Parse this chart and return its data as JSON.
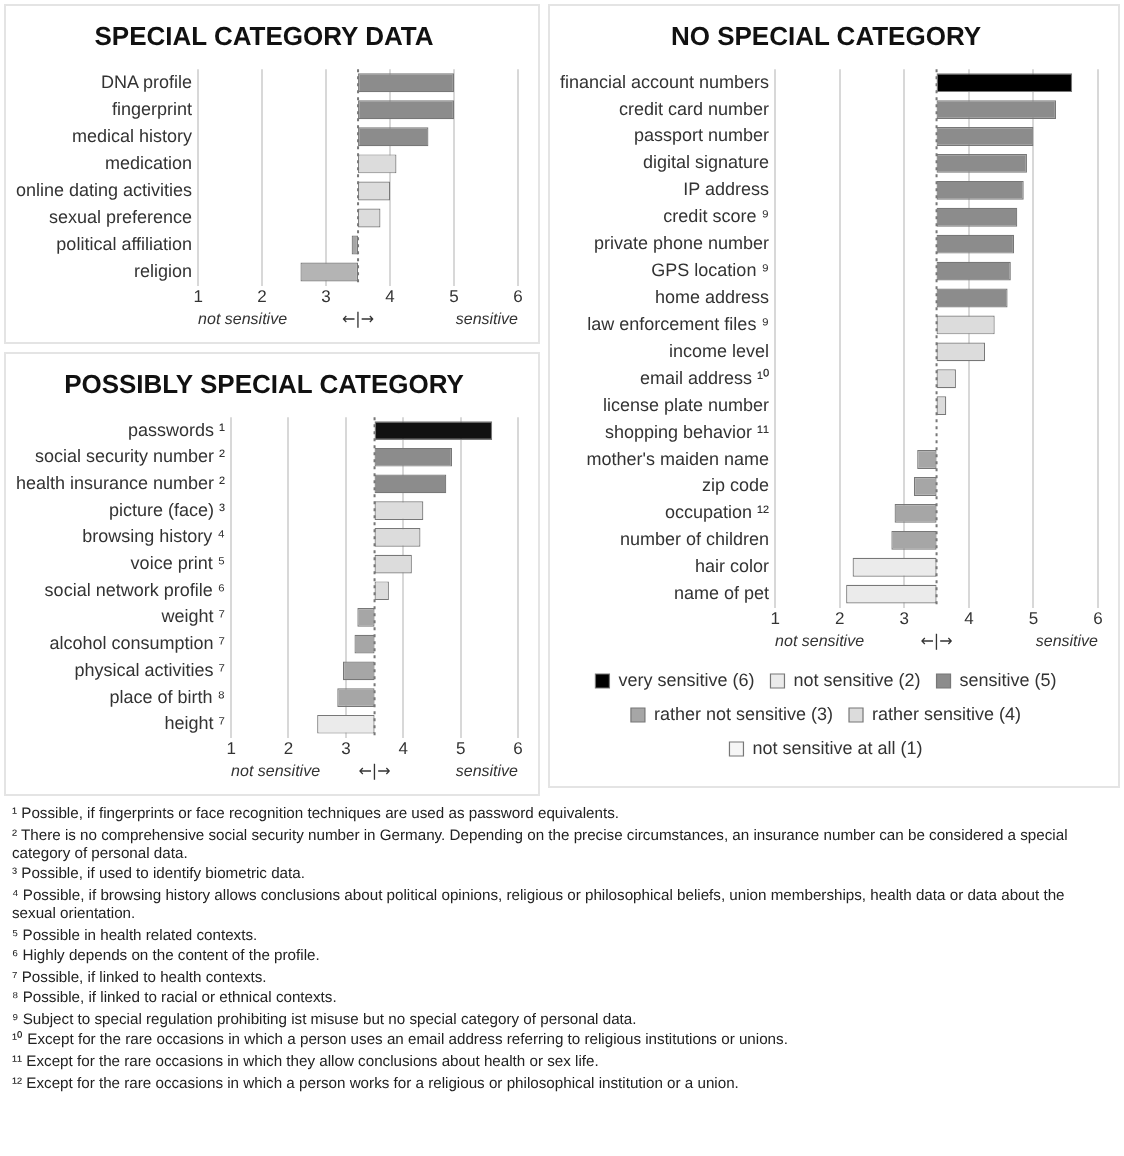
{
  "chart_data": [
    {
      "type": "bar",
      "orientation": "horizontal",
      "title": "SPECIAL CATEGORY DATA",
      "categories": [
        "DNA profile",
        "fingerprint",
        "medical history",
        "medication",
        "online dating activities",
        "sexual preference",
        "political affiliation",
        "religion"
      ],
      "base": [
        3.5,
        3.5,
        3.5,
        3.5,
        3.5,
        3.5,
        3.5,
        3.5
      ],
      "values": [
        1.5,
        1.5,
        1.1,
        0.6,
        0.5,
        0.35,
        -0.1,
        -0.9
      ],
      "colors": [
        "#8c8c8c",
        "#8c8c8c",
        "#8c8c8c",
        "#dcdcdc",
        "#dcdcdc",
        "#dcdcdc",
        "#a6a6a6",
        "#b4b4b4"
      ],
      "xlim": [
        1,
        6
      ],
      "xticks": [
        1,
        2,
        3,
        4,
        5,
        6
      ],
      "grid": "x",
      "ref_lines": [
        {
          "axis": "x",
          "value": 3.5,
          "label": "←|→",
          "line_style": "dotted"
        }
      ],
      "annotations": [
        "not sensitive",
        "sensitive"
      ]
    },
    {
      "type": "bar",
      "orientation": "horizontal",
      "title": "POSSIBLY SPECIAL CATEGORY",
      "categories": [
        "passwords ¹",
        "social security number ²",
        "health insurance number ²",
        "picture (face) ³",
        "browsing history ⁴",
        "voice print ⁵",
        "social network profile ⁶",
        "weight ⁷",
        "alcohol consumption ⁷",
        "physical activities ⁷",
        "place of birth ⁸",
        "height ⁷"
      ],
      "base": [
        3.5,
        3.5,
        3.5,
        3.5,
        3.5,
        3.5,
        3.5,
        3.5,
        3.5,
        3.5,
        3.5,
        3.5
      ],
      "values": [
        2.05,
        1.35,
        1.25,
        0.85,
        0.8,
        0.65,
        0.25,
        -0.3,
        -0.35,
        -0.55,
        -0.65,
        -1.0
      ],
      "colors": [
        "#111111",
        "#8c8c8c",
        "#8c8c8c",
        "#dcdcdc",
        "#dcdcdc",
        "#dcdcdc",
        "#dcdcdc",
        "#a6a6a6",
        "#a6a6a6",
        "#a6a6a6",
        "#a6a6a6",
        "#ebebeb"
      ],
      "xlim": [
        1,
        6
      ],
      "xticks": [
        1,
        2,
        3,
        4,
        5,
        6
      ],
      "grid": "x",
      "ref_lines": [
        {
          "axis": "x",
          "value": 3.5,
          "label": "←|→",
          "line_style": "dotted"
        }
      ],
      "annotations": [
        "not sensitive",
        "sensitive"
      ]
    },
    {
      "type": "bar",
      "orientation": "horizontal",
      "title": "NO SPECIAL CATEGORY",
      "categories": [
        "financial account numbers",
        "credit card number",
        "passport number",
        "digital signature",
        "IP address",
        "credit score ⁹",
        "private phone number",
        "GPS location ⁹",
        "home address",
        "law enforcement files ⁹",
        "income level",
        "email address ¹⁰",
        "license plate number",
        "shopping behavior ¹¹",
        "mother's maiden name",
        "zip code",
        "occupation ¹²",
        "number of children",
        "hair color",
        "name of pet"
      ],
      "series": [
        {
          "name": "very sensitive (6)",
          "color": "#000000",
          "base": [
            3.5,
            null,
            null,
            null,
            null,
            null,
            null,
            null,
            null,
            null,
            null,
            null,
            null,
            null,
            null,
            null,
            null,
            null,
            null,
            null
          ],
          "values": [
            2.1,
            null,
            null,
            null,
            null,
            null,
            null,
            null,
            null,
            null,
            null,
            null,
            null,
            null,
            null,
            null,
            null,
            null,
            null,
            null
          ]
        },
        {
          "name": "not sensitive (2)",
          "color": "#ebebeb",
          "base": [
            null,
            null,
            null,
            null,
            null,
            null,
            null,
            null,
            null,
            null,
            null,
            null,
            null,
            null,
            null,
            null,
            null,
            null,
            3.5,
            3.5
          ],
          "values": [
            null,
            null,
            null,
            null,
            null,
            null,
            null,
            null,
            null,
            null,
            null,
            null,
            null,
            null,
            null,
            null,
            null,
            null,
            -1.3,
            -1.4
          ]
        },
        {
          "name": "sensitive (5)",
          "color": "#8c8c8c",
          "base": [
            null,
            3.5,
            3.5,
            3.5,
            3.5,
            3.5,
            3.5,
            3.5,
            3.5,
            null,
            null,
            null,
            null,
            null,
            null,
            null,
            null,
            null,
            null,
            null
          ],
          "values": [
            null,
            1.85,
            1.5,
            1.4,
            1.35,
            1.25,
            1.2,
            1.15,
            1.1,
            null,
            null,
            null,
            null,
            null,
            null,
            null,
            null,
            null,
            null,
            null
          ]
        },
        {
          "name": "rather not sensitive (3)",
          "color": "#a6a6a6",
          "base": [
            null,
            null,
            null,
            null,
            null,
            null,
            null,
            null,
            null,
            null,
            null,
            null,
            null,
            null,
            3.5,
            3.5,
            3.5,
            3.5,
            null,
            null
          ],
          "values": [
            null,
            null,
            null,
            null,
            null,
            null,
            null,
            null,
            null,
            null,
            null,
            null,
            null,
            null,
            -0.3,
            -0.35,
            -0.65,
            -0.7,
            null,
            null
          ]
        },
        {
          "name": "rather sensitive (4)",
          "color": "#dcdcdc",
          "base": [
            null,
            null,
            null,
            null,
            null,
            null,
            null,
            null,
            null,
            3.5,
            3.5,
            3.5,
            3.5,
            null,
            null,
            null,
            null,
            null,
            null,
            null
          ],
          "values": [
            null,
            null,
            null,
            null,
            null,
            null,
            null,
            null,
            null,
            0.9,
            0.75,
            0.3,
            0.15,
            null,
            null,
            null,
            null,
            null,
            null,
            null
          ]
        },
        {
          "name": "not sensitive at all (1)",
          "color": "#f6f6f6",
          "values": [
            null,
            null,
            null,
            null,
            null,
            null,
            null,
            null,
            null,
            null,
            null,
            null,
            null,
            null,
            null,
            null,
            null,
            null,
            null,
            null
          ]
        }
      ],
      "xlim": [
        1,
        6
      ],
      "xticks": [
        1,
        2,
        3,
        4,
        5,
        6
      ],
      "grid": "x",
      "legend": "bottom",
      "ref_lines": [
        {
          "axis": "x",
          "value": 3.5,
          "label": "←|→",
          "line_style": "dotted"
        }
      ],
      "annotations": [
        "not sensitive",
        "sensitive"
      ]
    },
    {
      "type": "other",
      "annotations": [
        "¹ Possible, if fingerprints or face recognition techniques are used as password equivalents.",
        "² There is no comprehensive social security number in Germany. Depending on the precise circumstances, an insurance number can be considered a special category of personal data.",
        "³ Possible, if used to identify biometric data.",
        "⁴ Possible, if browsing history allows conclusions about political opinions, religious or philosophical beliefs, union memberships, health data or data about the sexual orientation.",
        "⁵ Possible in health related contexts.",
        "⁶ Highly depends on the content of the profile.",
        "⁷ Possible, if linked to health contexts.",
        "⁸ Possible, if linked to racial or ethnical contexts.",
        "⁹ Subject to special regulation prohibiting ist misuse but no special category of personal data.",
        "¹⁰ Except for the rare occasions in which a person uses an email address referring to religious institutions or unions.",
        "¹¹ Except for the rare occasions in which they allow conclusions about health or sex life.",
        "¹² Except for the rare occasions in which a person works for a religious or philosophical institution or a union."
      ]
    }
  ]
}
